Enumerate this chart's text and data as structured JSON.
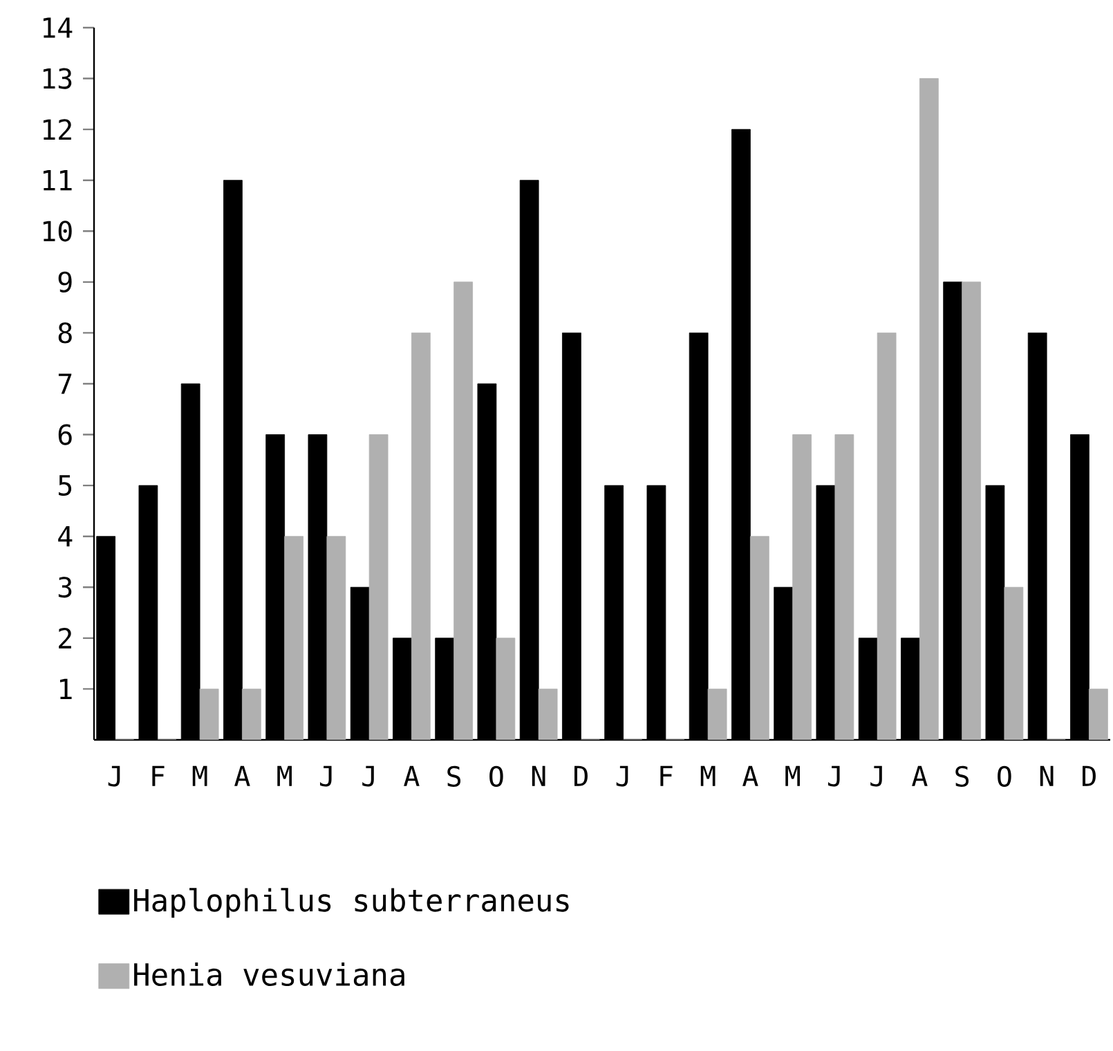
{
  "chart_data": {
    "type": "bar",
    "categories": [
      "J",
      "F",
      "M",
      "A",
      "M",
      "J",
      "J",
      "A",
      "S",
      "O",
      "N",
      "D",
      "J",
      "F",
      "M",
      "A",
      "M",
      "J",
      "J",
      "A",
      "S",
      "O",
      "N",
      "D"
    ],
    "series": [
      {
        "name": "Haplophilus subterraneus",
        "color": "#000000",
        "values": [
          4,
          5,
          7,
          11,
          6,
          6,
          3,
          2,
          2,
          7,
          11,
          8,
          5,
          5,
          8,
          12,
          3,
          5,
          2,
          2,
          9,
          5,
          8,
          6
        ]
      },
      {
        "name": "Henia vesuviana",
        "color": "#b0b0b0",
        "values": [
          0,
          0,
          1,
          1,
          4,
          4,
          6,
          8,
          9,
          2,
          1,
          0,
          0,
          0,
          1,
          4,
          6,
          6,
          8,
          13,
          9,
          3,
          0,
          1
        ]
      }
    ],
    "ylim": [
      0,
      14
    ],
    "yticks": [
      1,
      2,
      3,
      4,
      5,
      6,
      7,
      8,
      9,
      10,
      11,
      12,
      13,
      14
    ],
    "grid": false,
    "legend": "bottom left"
  }
}
